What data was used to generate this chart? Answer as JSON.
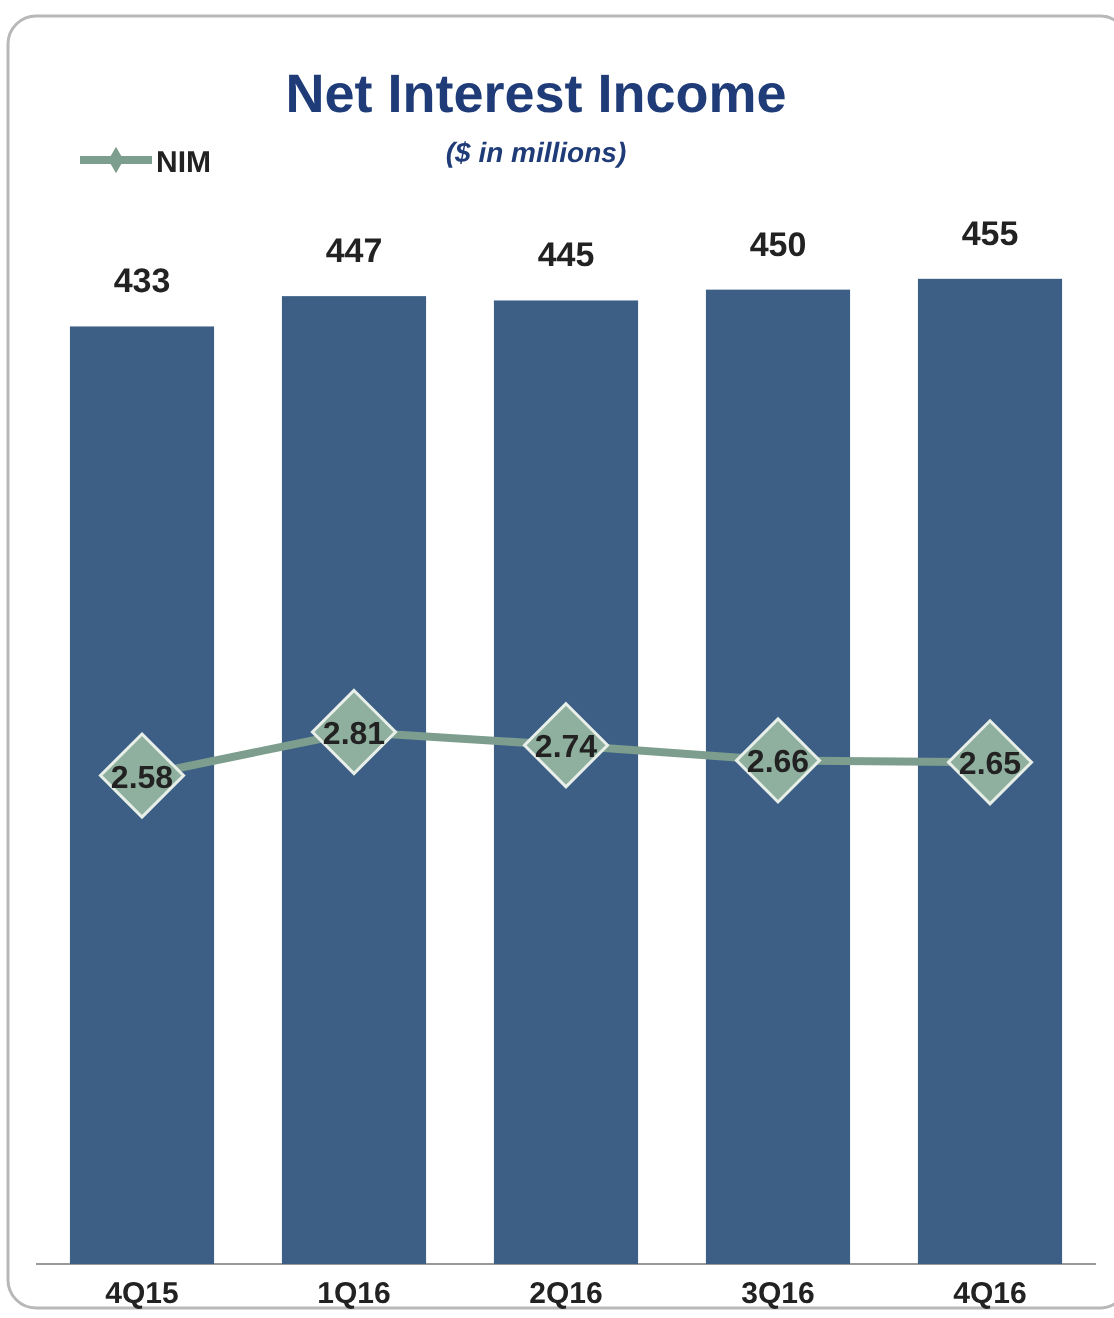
{
  "chart_data": {
    "type": "bar",
    "title": "Net Interest Income",
    "subtitle": "($ in millions)",
    "categories": [
      "4Q15",
      "1Q16",
      "2Q16",
      "3Q16",
      "4Q16"
    ],
    "series": [
      {
        "color": "#3d5f86",
        "values": [
          433,
          447,
          445,
          450,
          455
        ]
      },
      {
        "type": "line",
        "name": "NIM",
        "axis": "y2",
        "color": "#7d9e8e",
        "marker": "diamond",
        "values": [
          2.58,
          2.81,
          2.74,
          2.66,
          2.65
        ]
      }
    ],
    "tick_labels": "x",
    "data_labels": true,
    "legend": "top left",
    "grid": false
  }
}
